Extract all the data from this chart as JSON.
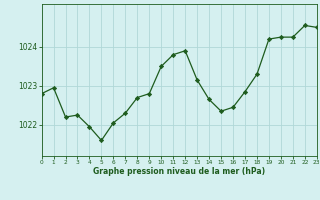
{
  "hours": [
    0,
    1,
    2,
    3,
    4,
    5,
    6,
    7,
    8,
    9,
    10,
    11,
    12,
    13,
    14,
    15,
    16,
    17,
    18,
    19,
    20,
    21,
    22,
    23
  ],
  "pressure": [
    1022.8,
    1022.95,
    1022.2,
    1022.25,
    1021.95,
    1021.6,
    1022.05,
    1022.3,
    1022.7,
    1022.8,
    1023.5,
    1023.8,
    1023.9,
    1023.15,
    1022.65,
    1022.35,
    1022.45,
    1022.85,
    1023.3,
    1024.2,
    1024.25,
    1024.25,
    1024.55,
    1024.5
  ],
  "line_color": "#1e5c1e",
  "marker_color": "#1e5c1e",
  "bg_color": "#d5f0f0",
  "grid_color": "#b0d8d8",
  "xlabel": "Graphe pression niveau de la mer (hPa)",
  "xlabel_color": "#1e5c1e",
  "tick_color": "#1e5c1e",
  "yticks": [
    1022,
    1023,
    1024
  ],
  "ylim": [
    1021.2,
    1025.1
  ],
  "xlim": [
    0,
    23
  ]
}
